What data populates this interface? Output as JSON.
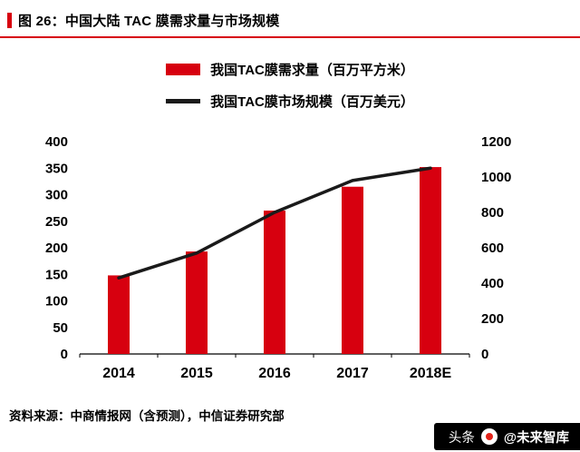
{
  "page": {
    "title": "图 26：中国大陆 TAC 膜需求量与市场规模",
    "source": "资料来源：中商情报网（含预测），中信证券研究部",
    "watermark": {
      "prefix": "头条",
      "handle": "@未来智库"
    }
  },
  "colors": {
    "bar": "#d7000f",
    "line": "#1a1a1a",
    "accent": "#d7000f",
    "logo_dot": "#e32219"
  },
  "chart_data": {
    "type": "bar",
    "subtype": "bar+line dual axis",
    "categories": [
      "2014",
      "2015",
      "2016",
      "2017",
      "2018E"
    ],
    "series": [
      {
        "name": "我国TAC膜需求量（百万平方米）",
        "type": "bar",
        "axis": "left",
        "values": [
          148,
          193,
          270,
          315,
          352
        ]
      },
      {
        "name": "我国TAC膜市场规模（百万美元）",
        "type": "line",
        "axis": "right",
        "values": [
          430,
          570,
          800,
          980,
          1050
        ]
      }
    ],
    "left_axis": {
      "min": 0,
      "max": 400,
      "step": 50
    },
    "right_axis": {
      "min": 0,
      "max": 1200,
      "step": 200
    },
    "grid": false,
    "legend_position": "top"
  }
}
